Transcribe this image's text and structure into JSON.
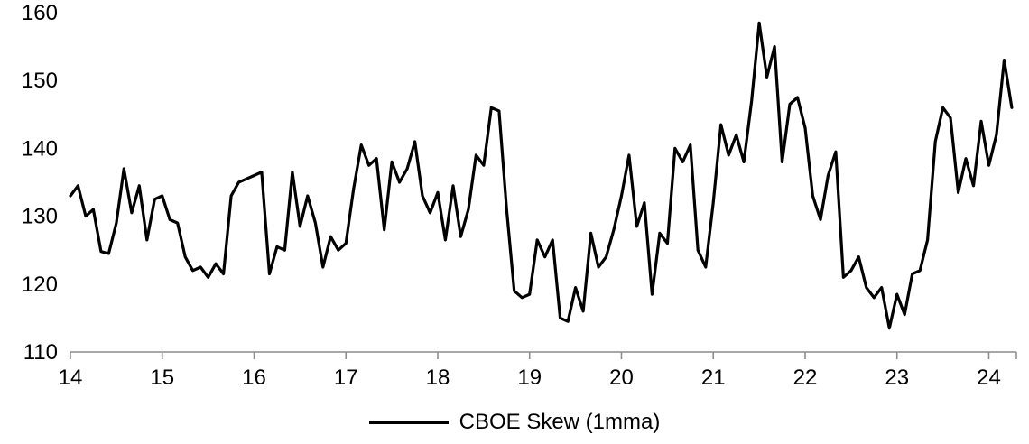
{
  "chart_data": {
    "type": "line",
    "title": "",
    "xlabel": "",
    "ylabel": "",
    "xlim": [
      14,
      24.3
    ],
    "ylim": [
      110,
      160
    ],
    "x_ticks": [
      14,
      15,
      16,
      17,
      18,
      19,
      20,
      21,
      22,
      23,
      24
    ],
    "y_ticks": [
      110,
      120,
      130,
      140,
      150,
      160
    ],
    "grid": false,
    "legend_position": "bottom-center",
    "axis_color": "#8c8c8c",
    "label_color": "#000000",
    "line_width": 3.2,
    "series": [
      {
        "name": "CBOE Skew (1mma)",
        "color": "#000000",
        "x": [
          14.0,
          14.083,
          14.167,
          14.25,
          14.333,
          14.417,
          14.5,
          14.583,
          14.667,
          14.75,
          14.833,
          14.917,
          15.0,
          15.083,
          15.167,
          15.25,
          15.333,
          15.417,
          15.5,
          15.583,
          15.667,
          15.75,
          15.833,
          15.917,
          16.0,
          16.083,
          16.167,
          16.25,
          16.333,
          16.417,
          16.5,
          16.583,
          16.667,
          16.75,
          16.833,
          16.917,
          17.0,
          17.083,
          17.167,
          17.25,
          17.333,
          17.417,
          17.5,
          17.583,
          17.667,
          17.75,
          17.833,
          17.917,
          18.0,
          18.083,
          18.167,
          18.25,
          18.333,
          18.417,
          18.5,
          18.583,
          18.667,
          18.75,
          18.833,
          18.917,
          19.0,
          19.083,
          19.167,
          19.25,
          19.333,
          19.417,
          19.5,
          19.583,
          19.667,
          19.75,
          19.833,
          19.917,
          20.0,
          20.083,
          20.167,
          20.25,
          20.333,
          20.417,
          20.5,
          20.583,
          20.667,
          20.75,
          20.833,
          20.917,
          21.0,
          21.083,
          21.167,
          21.25,
          21.333,
          21.417,
          21.5,
          21.583,
          21.667,
          21.75,
          21.833,
          21.917,
          22.0,
          22.083,
          22.167,
          22.25,
          22.333,
          22.417,
          22.5,
          22.583,
          22.667,
          22.75,
          22.833,
          22.917,
          23.0,
          23.083,
          23.167,
          23.25,
          23.333,
          23.417,
          23.5,
          23.583,
          23.667,
          23.75,
          23.833,
          23.917,
          24.0,
          24.083,
          24.167,
          24.25
        ],
        "y": [
          133.0,
          134.5,
          130.0,
          131.0,
          124.8,
          124.5,
          129.0,
          137.0,
          130.5,
          134.5,
          126.5,
          132.5,
          133.0,
          129.5,
          129.0,
          124.0,
          122.0,
          122.5,
          121.0,
          123.0,
          121.5,
          133.0,
          135.0,
          135.5,
          136.0,
          136.5,
          121.5,
          125.5,
          125.0,
          136.5,
          128.5,
          133.0,
          129.0,
          122.5,
          127.0,
          125.0,
          126.0,
          134.0,
          140.5,
          137.5,
          138.5,
          128.0,
          138.0,
          135.0,
          137.0,
          141.0,
          133.0,
          130.5,
          133.5,
          126.5,
          134.5,
          127.0,
          131.0,
          139.0,
          137.5,
          146.0,
          145.5,
          131.0,
          119.0,
          118.0,
          118.5,
          126.5,
          124.0,
          126.5,
          115.0,
          114.5,
          119.5,
          116.0,
          127.5,
          122.5,
          124.0,
          128.0,
          133.0,
          139.0,
          128.5,
          132.0,
          118.5,
          127.5,
          126.0,
          140.0,
          138.0,
          140.5,
          125.0,
          122.5,
          132.0,
          143.5,
          139.0,
          142.0,
          138.0,
          147.0,
          158.5,
          150.5,
          155.0,
          138.0,
          146.5,
          147.5,
          143.0,
          133.0,
          129.5,
          136.0,
          139.5,
          121.0,
          122.0,
          124.0,
          119.5,
          118.0,
          119.5,
          113.5,
          118.5,
          115.5,
          121.5,
          122.0,
          126.5,
          141.0,
          146.0,
          144.5,
          133.5,
          138.5,
          134.5,
          144.0,
          137.5,
          142.0,
          153.0,
          146.0
        ]
      }
    ]
  }
}
